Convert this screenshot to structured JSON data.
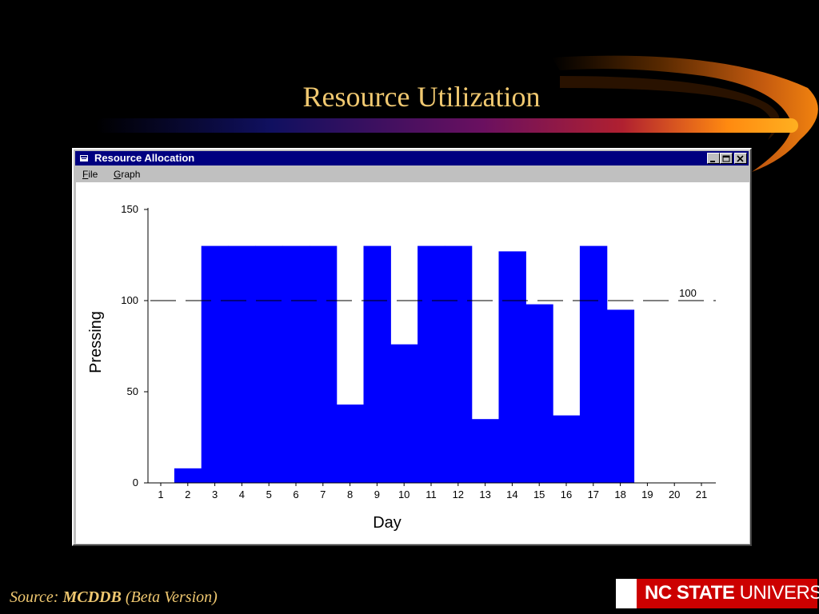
{
  "slide": {
    "title": "Resource Utilization",
    "source_prefix": "Source: ",
    "source_name": "MCDDB",
    "source_suffix": " (Beta Version)",
    "logo_bold": "NC STATE",
    "logo_light": " UNIVERSITY"
  },
  "window": {
    "title": "Resource Allocation",
    "menu": [
      {
        "label": "File",
        "accel": "F",
        "rest": "ile"
      },
      {
        "label": "Graph",
        "accel": "G",
        "rest": "raph"
      }
    ],
    "buttons": [
      "minimize",
      "maximize",
      "close"
    ]
  },
  "colors": {
    "bar": "#0000ff",
    "title_text": "#f0c870",
    "window_titlebar": "#000080",
    "logo_red": "#cc0000"
  },
  "chart_data": {
    "type": "bar",
    "xlabel": "Day",
    "ylabel": "Pressing",
    "ylim": [
      0,
      150
    ],
    "yticks": [
      0,
      50,
      100,
      150
    ],
    "categories": [
      "1",
      "2",
      "3",
      "4",
      "5",
      "6",
      "7",
      "8",
      "9",
      "10",
      "11",
      "12",
      "13",
      "14",
      "15",
      "16",
      "17",
      "18",
      "19",
      "20",
      "21"
    ],
    "values": [
      0,
      8,
      130,
      130,
      130,
      130,
      130,
      43,
      130,
      76,
      130,
      130,
      35,
      127,
      98,
      37,
      130,
      95,
      0,
      0,
      0
    ],
    "reference_line": {
      "value": 100,
      "label": "100",
      "style": "dashed"
    }
  }
}
